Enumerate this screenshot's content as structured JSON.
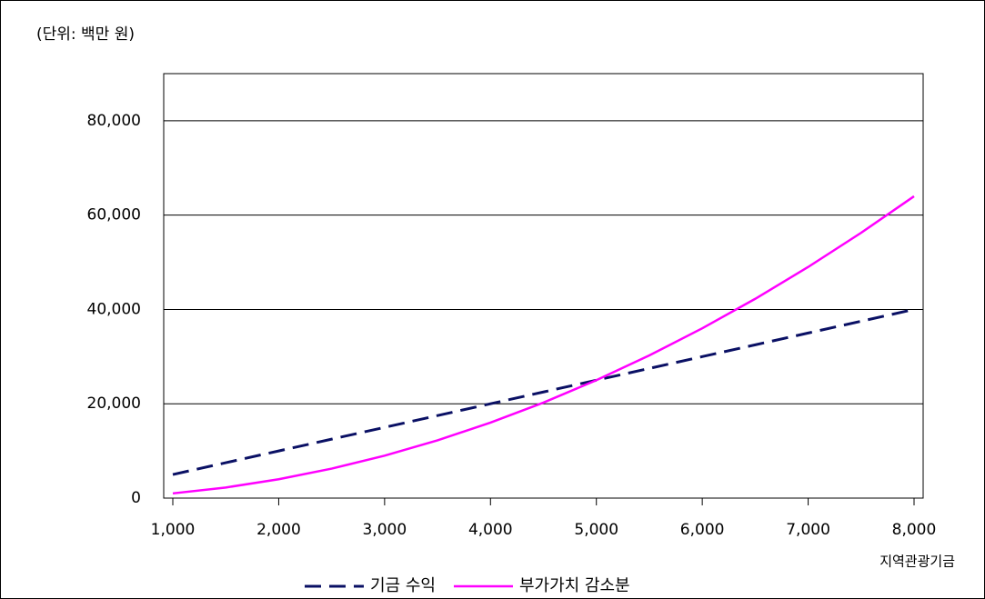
{
  "chart_data": {
    "type": "line",
    "subtitle": "(단위: 백만 원)",
    "xlabel": "지역관광기금",
    "x": [
      1000,
      1500,
      2000,
      2500,
      3000,
      3500,
      4000,
      4500,
      5000,
      5500,
      6000,
      6500,
      7000,
      7500,
      8000
    ],
    "series": [
      {
        "name": "기금 수익",
        "color": "#0a1064",
        "dash": true,
        "values": [
          5000,
          7500,
          10000,
          12500,
          15000,
          17500,
          20000,
          22500,
          25000,
          27500,
          30000,
          32500,
          35000,
          37500,
          40000
        ]
      },
      {
        "name": "부가가치 감소분",
        "color": "#ff00ff",
        "dash": false,
        "values": [
          1000,
          2250,
          4000,
          6250,
          9000,
          12250,
          16000,
          20250,
          25000,
          30250,
          36000,
          42250,
          49000,
          56250,
          64000
        ]
      }
    ],
    "xlim": [
      914,
      8086
    ],
    "xticks": [
      {
        "value": 1000,
        "label": "1,000"
      },
      {
        "value": 2000,
        "label": "2,000"
      },
      {
        "value": 3000,
        "label": "3,000"
      },
      {
        "value": 4000,
        "label": "4,000"
      },
      {
        "value": 5000,
        "label": "5,000"
      },
      {
        "value": 6000,
        "label": "6,000"
      },
      {
        "value": 7000,
        "label": "7,000"
      },
      {
        "value": 8000,
        "label": "8,000"
      }
    ],
    "ylim": [
      0,
      90000
    ],
    "yticks": [
      0,
      {
        "value": 20000,
        "label": "20,000"
      },
      {
        "value": 40000,
        "label": "40,000"
      },
      {
        "value": 60000,
        "label": "60,000"
      },
      {
        "value": 80000,
        "label": "80,000"
      }
    ],
    "grid": true,
    "legend": "bottom"
  }
}
